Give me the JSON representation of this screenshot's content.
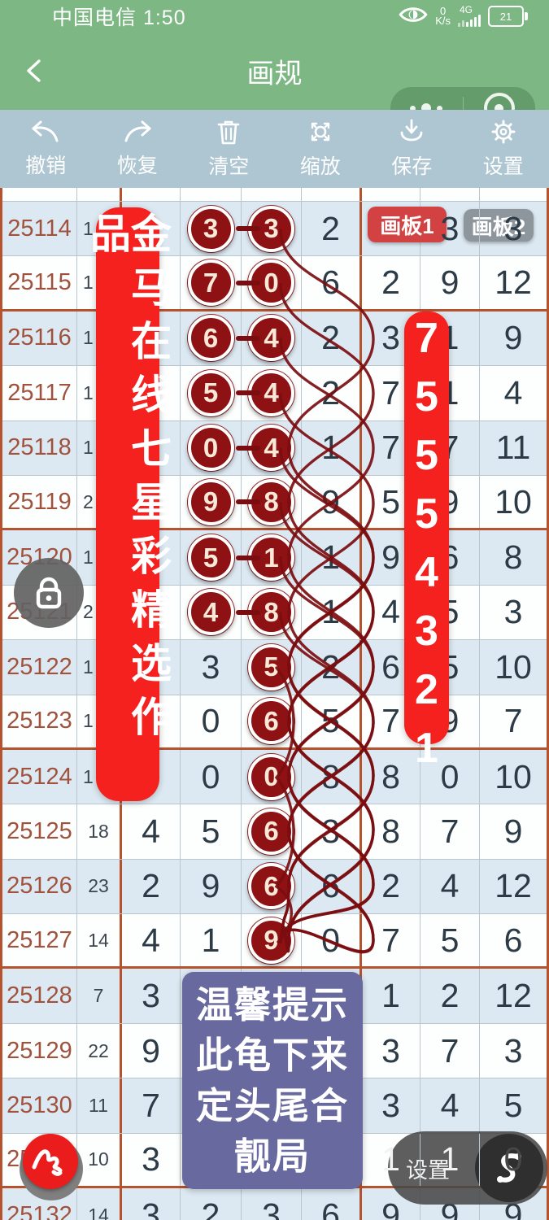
{
  "status_bar": {
    "carrier_time": "中国电信 1:50",
    "speed_value": "0",
    "speed_unit": "K/s",
    "network": "4G",
    "battery_level": "21"
  },
  "navbar": {
    "title": "画规"
  },
  "toolbar": {
    "items": [
      {
        "id": "undo",
        "label": "撤销"
      },
      {
        "id": "redo",
        "label": "恢复"
      },
      {
        "id": "clear",
        "label": "清空"
      },
      {
        "id": "zoom",
        "label": "缩放"
      },
      {
        "id": "save",
        "label": "保存"
      },
      {
        "id": "settings",
        "label": "设置"
      }
    ]
  },
  "table": {
    "rows": [
      {
        "period": "25114",
        "sum": "1",
        "sum_partial": true,
        "cells": {
          "a": "",
          "b": "3",
          "c": "3",
          "d": "2",
          "e": "",
          "f": "3",
          "g": "3"
        },
        "circled": [
          "b",
          "c"
        ],
        "pair": true,
        "special": {
          "f": "over",
          "g": "over"
        }
      },
      {
        "period": "25115",
        "sum": "1",
        "sum_partial": true,
        "cells": {
          "a": "",
          "b": "7",
          "c": "0",
          "d": "6",
          "e": "2",
          "f": "9",
          "g": "12"
        },
        "circled": [
          "b",
          "c"
        ],
        "pair": true
      },
      {
        "period": "25116",
        "sum": "1",
        "sum_partial": true,
        "cells": {
          "a": "",
          "b": "6",
          "c": "4",
          "d": "2",
          "e": "3",
          "f": "1",
          "g": "9"
        },
        "circled": [
          "b",
          "c"
        ],
        "pair": true
      },
      {
        "period": "25117",
        "sum": "1",
        "sum_partial": true,
        "cells": {
          "a": "",
          "b": "5",
          "c": "4",
          "d": "2",
          "e": "7",
          "f": "1",
          "g": "4"
        },
        "circled": [
          "b",
          "c"
        ],
        "pair": true
      },
      {
        "period": "25118",
        "sum": "1",
        "sum_partial": true,
        "cells": {
          "a": "",
          "b": "0",
          "c": "4",
          "d": "1",
          "e": "7",
          "f": "7",
          "g": "11"
        },
        "circled": [
          "b",
          "c"
        ],
        "pair": true
      },
      {
        "period": "25119",
        "sum": "2",
        "sum_partial": true,
        "cells": {
          "a": "",
          "b": "9",
          "c": "8",
          "d": "9",
          "e": "5",
          "f": "9",
          "g": "10"
        },
        "circled": [
          "b",
          "c"
        ],
        "pair": true
      },
      {
        "period": "25120",
        "sum": "1",
        "sum_partial": true,
        "cells": {
          "a": "",
          "b": "5",
          "c": "1",
          "d": "1",
          "e": "9",
          "f": "6",
          "g": "8"
        },
        "circled": [
          "b",
          "c"
        ],
        "pair": true
      },
      {
        "period": "25121",
        "sum": "2",
        "sum_partial": true,
        "cells": {
          "a": "",
          "b": "4",
          "c": "8",
          "d": "1",
          "e": "4",
          "f": "5",
          "g": "3"
        },
        "circled": [
          "b",
          "c"
        ],
        "pair": true
      },
      {
        "period": "25122",
        "sum": "1",
        "sum_partial": true,
        "cells": {
          "a": "",
          "b": "3",
          "c": "5",
          "d": "2",
          "e": "6",
          "f": "5",
          "g": "10"
        },
        "circled": [
          "c"
        ],
        "pair": false
      },
      {
        "period": "25123",
        "sum": "1",
        "sum_partial": true,
        "cells": {
          "a": "",
          "b": "0",
          "c": "6",
          "d": "5",
          "e": "7",
          "f": "9",
          "g": "7"
        },
        "circled": [
          "c"
        ],
        "pair": false
      },
      {
        "period": "25124",
        "sum": "1",
        "sum_partial": true,
        "cells": {
          "a": "",
          "b": "0",
          "c": "0",
          "d": "8",
          "e": "8",
          "f": "0",
          "g": "10"
        },
        "circled": [
          "c"
        ],
        "pair": false
      },
      {
        "period": "25125",
        "sum": "18",
        "cells": {
          "a": "4",
          "b": "5",
          "c": "6",
          "d": "3",
          "e": "8",
          "f": "7",
          "g": "9"
        },
        "circled": [
          "c"
        ],
        "pair": false
      },
      {
        "period": "25126",
        "sum": "23",
        "cells": {
          "a": "2",
          "b": "9",
          "c": "6",
          "d": "6",
          "e": "2",
          "f": "4",
          "g": "12"
        },
        "circled": [
          "c"
        ],
        "pair": false
      },
      {
        "period": "25127",
        "sum": "14",
        "cells": {
          "a": "4",
          "b": "1",
          "c": "9",
          "d": "0",
          "e": "7",
          "f": "5",
          "g": "6"
        },
        "circled": [
          "c"
        ],
        "pair": false
      },
      {
        "period": "25128",
        "sum": "7",
        "cells": {
          "a": "3",
          "b": "",
          "c": "",
          "d": "",
          "e": "1",
          "f": "2",
          "g": "12"
        },
        "circled": [],
        "pair": false
      },
      {
        "period": "25129",
        "sum": "22",
        "cells": {
          "a": "9",
          "b": "",
          "c": "",
          "d": "",
          "e": "3",
          "f": "7",
          "g": "3"
        },
        "circled": [],
        "pair": false
      },
      {
        "period": "25130",
        "sum": "11",
        "cells": {
          "a": "7",
          "b": "",
          "c": "",
          "d": "",
          "e": "3",
          "f": "4",
          "g": "5"
        },
        "circled": [],
        "pair": false
      },
      {
        "period": "25131",
        "sum": "10",
        "cells": {
          "a": "3",
          "b": "",
          "c": "",
          "d": "",
          "e": "1",
          "f": "1",
          "g": "0"
        },
        "circled": [],
        "pair": false,
        "special": {
          "e": "white",
          "f": "white",
          "g": "dim"
        }
      },
      {
        "period": "25132",
        "sum": "14",
        "cells": {
          "a": "3",
          "b": "2",
          "c": "3",
          "d": "6",
          "e": "9",
          "f": "9",
          "g": "9"
        },
        "circled": [],
        "pair": false
      }
    ]
  },
  "overlays": {
    "left_banner": {
      "text": "金马在线七星彩精选作品",
      "color": "#f5211e"
    },
    "right_banner": {
      "digits": "75554321",
      "color": "#f5211e"
    },
    "tabs": [
      {
        "label": "画板1",
        "active": true,
        "color": "#d24242"
      },
      {
        "label": "画板2",
        "active": false,
        "color": "#8d969d"
      }
    ],
    "notice": {
      "lines": [
        "温馨提示",
        "此龟下来",
        "定头尾合",
        "靓局"
      ],
      "color": "#686a9f"
    },
    "bottom_bar": {
      "settings_label": "设置"
    }
  },
  "colors": {
    "header_green": "#7db884",
    "toolbar_blue": "#aec5d2",
    "row_alt_blue": "#dde9f2",
    "grid_thick": "#b5532f",
    "circle_fill": "#8e1113",
    "curve": "#7b0d10",
    "period_text": "#a0523d"
  }
}
